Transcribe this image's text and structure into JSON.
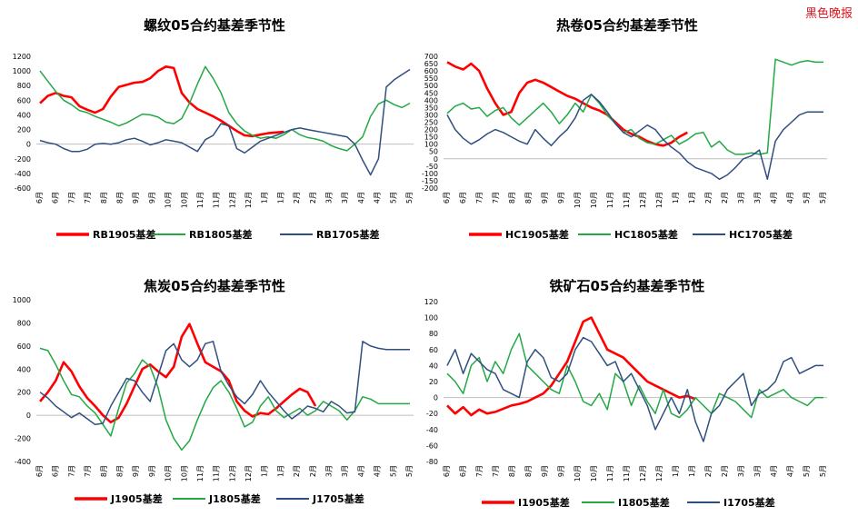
{
  "watermark": "黑色晚报",
  "colors": {
    "red": "#ff0000",
    "green": "#22a845",
    "navy": "#2f4f7f",
    "axis": "#bfbfbf",
    "text": "#000000"
  },
  "months": [
    "6月",
    "6月",
    "7月",
    "7月",
    "8月",
    "8月",
    "9月",
    "9月",
    "10月",
    "10月",
    "11月",
    "11月",
    "12月",
    "12月",
    "1月",
    "1月",
    "2月",
    "2月",
    "3月",
    "3月",
    "4月",
    "4月",
    "5月",
    "5月"
  ],
  "chart_data": [
    {
      "type": "line",
      "title": "螺纹05合约基差季节性",
      "ylim": [
        -600,
        1200
      ],
      "yticks": [
        -600,
        -400,
        -200,
        0,
        200,
        400,
        600,
        800,
        1000,
        1200
      ],
      "series": [
        {
          "name": "RB1905基差",
          "color": "red",
          "values": [
            560,
            660,
            700,
            660,
            640,
            520,
            470,
            430,
            480,
            650,
            780,
            810,
            840,
            850,
            900,
            1000,
            1060,
            1040,
            700,
            570,
            480,
            430,
            380,
            320,
            250,
            180,
            120,
            110,
            130,
            150,
            160,
            170,
            null,
            null,
            null,
            null,
            null,
            null,
            null,
            null,
            null,
            null,
            null,
            null,
            null,
            null,
            null,
            null
          ]
        },
        {
          "name": "RB1805基差",
          "color": "green",
          "values": [
            1000,
            860,
            720,
            600,
            540,
            460,
            430,
            380,
            340,
            300,
            250,
            290,
            350,
            410,
            400,
            370,
            300,
            280,
            350,
            560,
            820,
            1060,
            900,
            700,
            430,
            280,
            180,
            120,
            80,
            100,
            80,
            130,
            200,
            130,
            90,
            70,
            40,
            -20,
            -60,
            -90,
            0,
            100,
            380,
            550,
            600,
            540,
            500,
            560
          ]
        },
        {
          "name": "RB1705基差",
          "color": "navy",
          "values": [
            50,
            20,
            0,
            -60,
            -100,
            -100,
            -70,
            0,
            10,
            0,
            20,
            60,
            80,
            40,
            -10,
            20,
            60,
            40,
            20,
            -40,
            -100,
            60,
            120,
            280,
            250,
            -60,
            -120,
            -40,
            40,
            80,
            120,
            160,
            200,
            220,
            200,
            180,
            160,
            140,
            120,
            100,
            0,
            -220,
            -420,
            -200,
            780,
            880,
            950,
            1020
          ]
        }
      ]
    },
    {
      "type": "line",
      "title": "热卷05合约基差季节性",
      "ylim": [
        -200,
        700
      ],
      "yticks": [
        -200,
        -150,
        -100,
        -50,
        0,
        50,
        100,
        150,
        200,
        250,
        300,
        350,
        400,
        450,
        500,
        550,
        600,
        650,
        700
      ],
      "series": [
        {
          "name": "HC1905基差",
          "color": "red",
          "values": [
            660,
            630,
            610,
            650,
            600,
            480,
            380,
            300,
            320,
            450,
            520,
            540,
            520,
            490,
            460,
            430,
            410,
            380,
            350,
            330,
            300,
            250,
            200,
            170,
            150,
            120,
            100,
            90,
            110,
            150,
            180,
            null,
            null,
            null,
            null,
            null,
            null,
            null,
            null,
            null,
            null,
            null,
            null,
            null,
            null,
            null,
            null,
            null
          ]
        },
        {
          "name": "HC1805基差",
          "color": "green",
          "values": [
            310,
            360,
            380,
            340,
            350,
            290,
            330,
            350,
            280,
            230,
            280,
            330,
            380,
            320,
            240,
            300,
            380,
            320,
            440,
            380,
            300,
            240,
            180,
            200,
            140,
            110,
            100,
            130,
            160,
            100,
            130,
            170,
            180,
            80,
            120,
            60,
            30,
            30,
            40,
            30,
            40,
            680,
            660,
            640,
            660,
            670,
            660,
            660
          ]
        },
        {
          "name": "HC1705基差",
          "color": "navy",
          "values": [
            300,
            200,
            140,
            100,
            130,
            170,
            200,
            180,
            150,
            120,
            100,
            200,
            140,
            90,
            150,
            200,
            280,
            400,
            440,
            390,
            320,
            240,
            180,
            150,
            190,
            230,
            200,
            130,
            80,
            40,
            -20,
            -60,
            -80,
            -100,
            -140,
            -110,
            -60,
            0,
            20,
            60,
            -140,
            120,
            200,
            250,
            300,
            320,
            320,
            320
          ]
        }
      ]
    },
    {
      "type": "line",
      "title": "焦炭05合约基差季节性",
      "ylim": [
        -400,
        1000
      ],
      "yticks": [
        -400,
        -200,
        0,
        200,
        400,
        600,
        800,
        1000
      ],
      "series": [
        {
          "name": "J1905基差",
          "color": "red",
          "values": [
            120,
            200,
            300,
            460,
            380,
            250,
            150,
            80,
            0,
            -60,
            -20,
            100,
            250,
            400,
            440,
            380,
            330,
            420,
            680,
            790,
            620,
            460,
            420,
            380,
            300,
            120,
            40,
            -10,
            20,
            10,
            60,
            120,
            180,
            230,
            200,
            80,
            null,
            null,
            null,
            null,
            null,
            null,
            null,
            null,
            null,
            null,
            null,
            null
          ]
        },
        {
          "name": "J1805基差",
          "color": "green",
          "values": [
            580,
            560,
            440,
            300,
            180,
            160,
            80,
            20,
            -80,
            -180,
            60,
            280,
            360,
            480,
            420,
            240,
            -40,
            -200,
            -300,
            -220,
            -40,
            120,
            240,
            300,
            200,
            60,
            -100,
            -60,
            80,
            160,
            40,
            -20,
            20,
            60,
            0,
            40,
            120,
            80,
            40,
            -40,
            40,
            160,
            140,
            100,
            100,
            100,
            100,
            100
          ]
        },
        {
          "name": "J1705基差",
          "color": "navy",
          "values": [
            200,
            150,
            80,
            30,
            -20,
            20,
            -30,
            -80,
            -70,
            80,
            200,
            320,
            300,
            200,
            120,
            340,
            560,
            620,
            480,
            420,
            480,
            620,
            640,
            380,
            260,
            160,
            100,
            180,
            300,
            200,
            120,
            40,
            -30,
            20,
            80,
            60,
            30,
            120,
            80,
            20,
            30,
            640,
            600,
            580,
            570,
            570,
            570,
            570
          ]
        }
      ]
    },
    {
      "type": "line",
      "title": "铁矿石05合约基差季节性",
      "ylim": [
        -80,
        120
      ],
      "yticks": [
        -80,
        -60,
        -40,
        -20,
        0,
        20,
        40,
        60,
        80,
        100,
        120
      ],
      "series": [
        {
          "name": "I1905基差",
          "color": "red",
          "values": [
            -10,
            -20,
            -12,
            -22,
            -15,
            -20,
            -18,
            -14,
            -10,
            -8,
            -5,
            0,
            5,
            15,
            30,
            45,
            70,
            95,
            100,
            80,
            60,
            55,
            50,
            40,
            30,
            20,
            15,
            10,
            5,
            0,
            2,
            -2,
            null,
            null,
            null,
            null,
            null,
            null,
            null,
            null,
            null,
            null,
            null,
            null,
            null,
            null,
            null,
            null
          ]
        },
        {
          "name": "I1805基差",
          "color": "green",
          "values": [
            30,
            20,
            5,
            40,
            50,
            20,
            45,
            30,
            60,
            80,
            40,
            30,
            20,
            10,
            5,
            40,
            20,
            -5,
            -10,
            5,
            -15,
            30,
            20,
            -10,
            15,
            -5,
            -20,
            10,
            -20,
            -25,
            -15,
            0,
            -10,
            -20,
            5,
            0,
            -5,
            -15,
            -25,
            10,
            0,
            5,
            10,
            0,
            -5,
            -10,
            0,
            0
          ]
        },
        {
          "name": "I1705基差",
          "color": "navy",
          "values": [
            40,
            60,
            30,
            55,
            45,
            35,
            30,
            10,
            5,
            0,
            45,
            60,
            50,
            25,
            20,
            30,
            60,
            75,
            70,
            55,
            40,
            45,
            20,
            30,
            10,
            -10,
            -40,
            -20,
            0,
            -20,
            10,
            -30,
            -55,
            -20,
            -10,
            10,
            20,
            30,
            -10,
            5,
            10,
            20,
            45,
            50,
            30,
            35,
            40,
            40
          ]
        }
      ]
    }
  ]
}
